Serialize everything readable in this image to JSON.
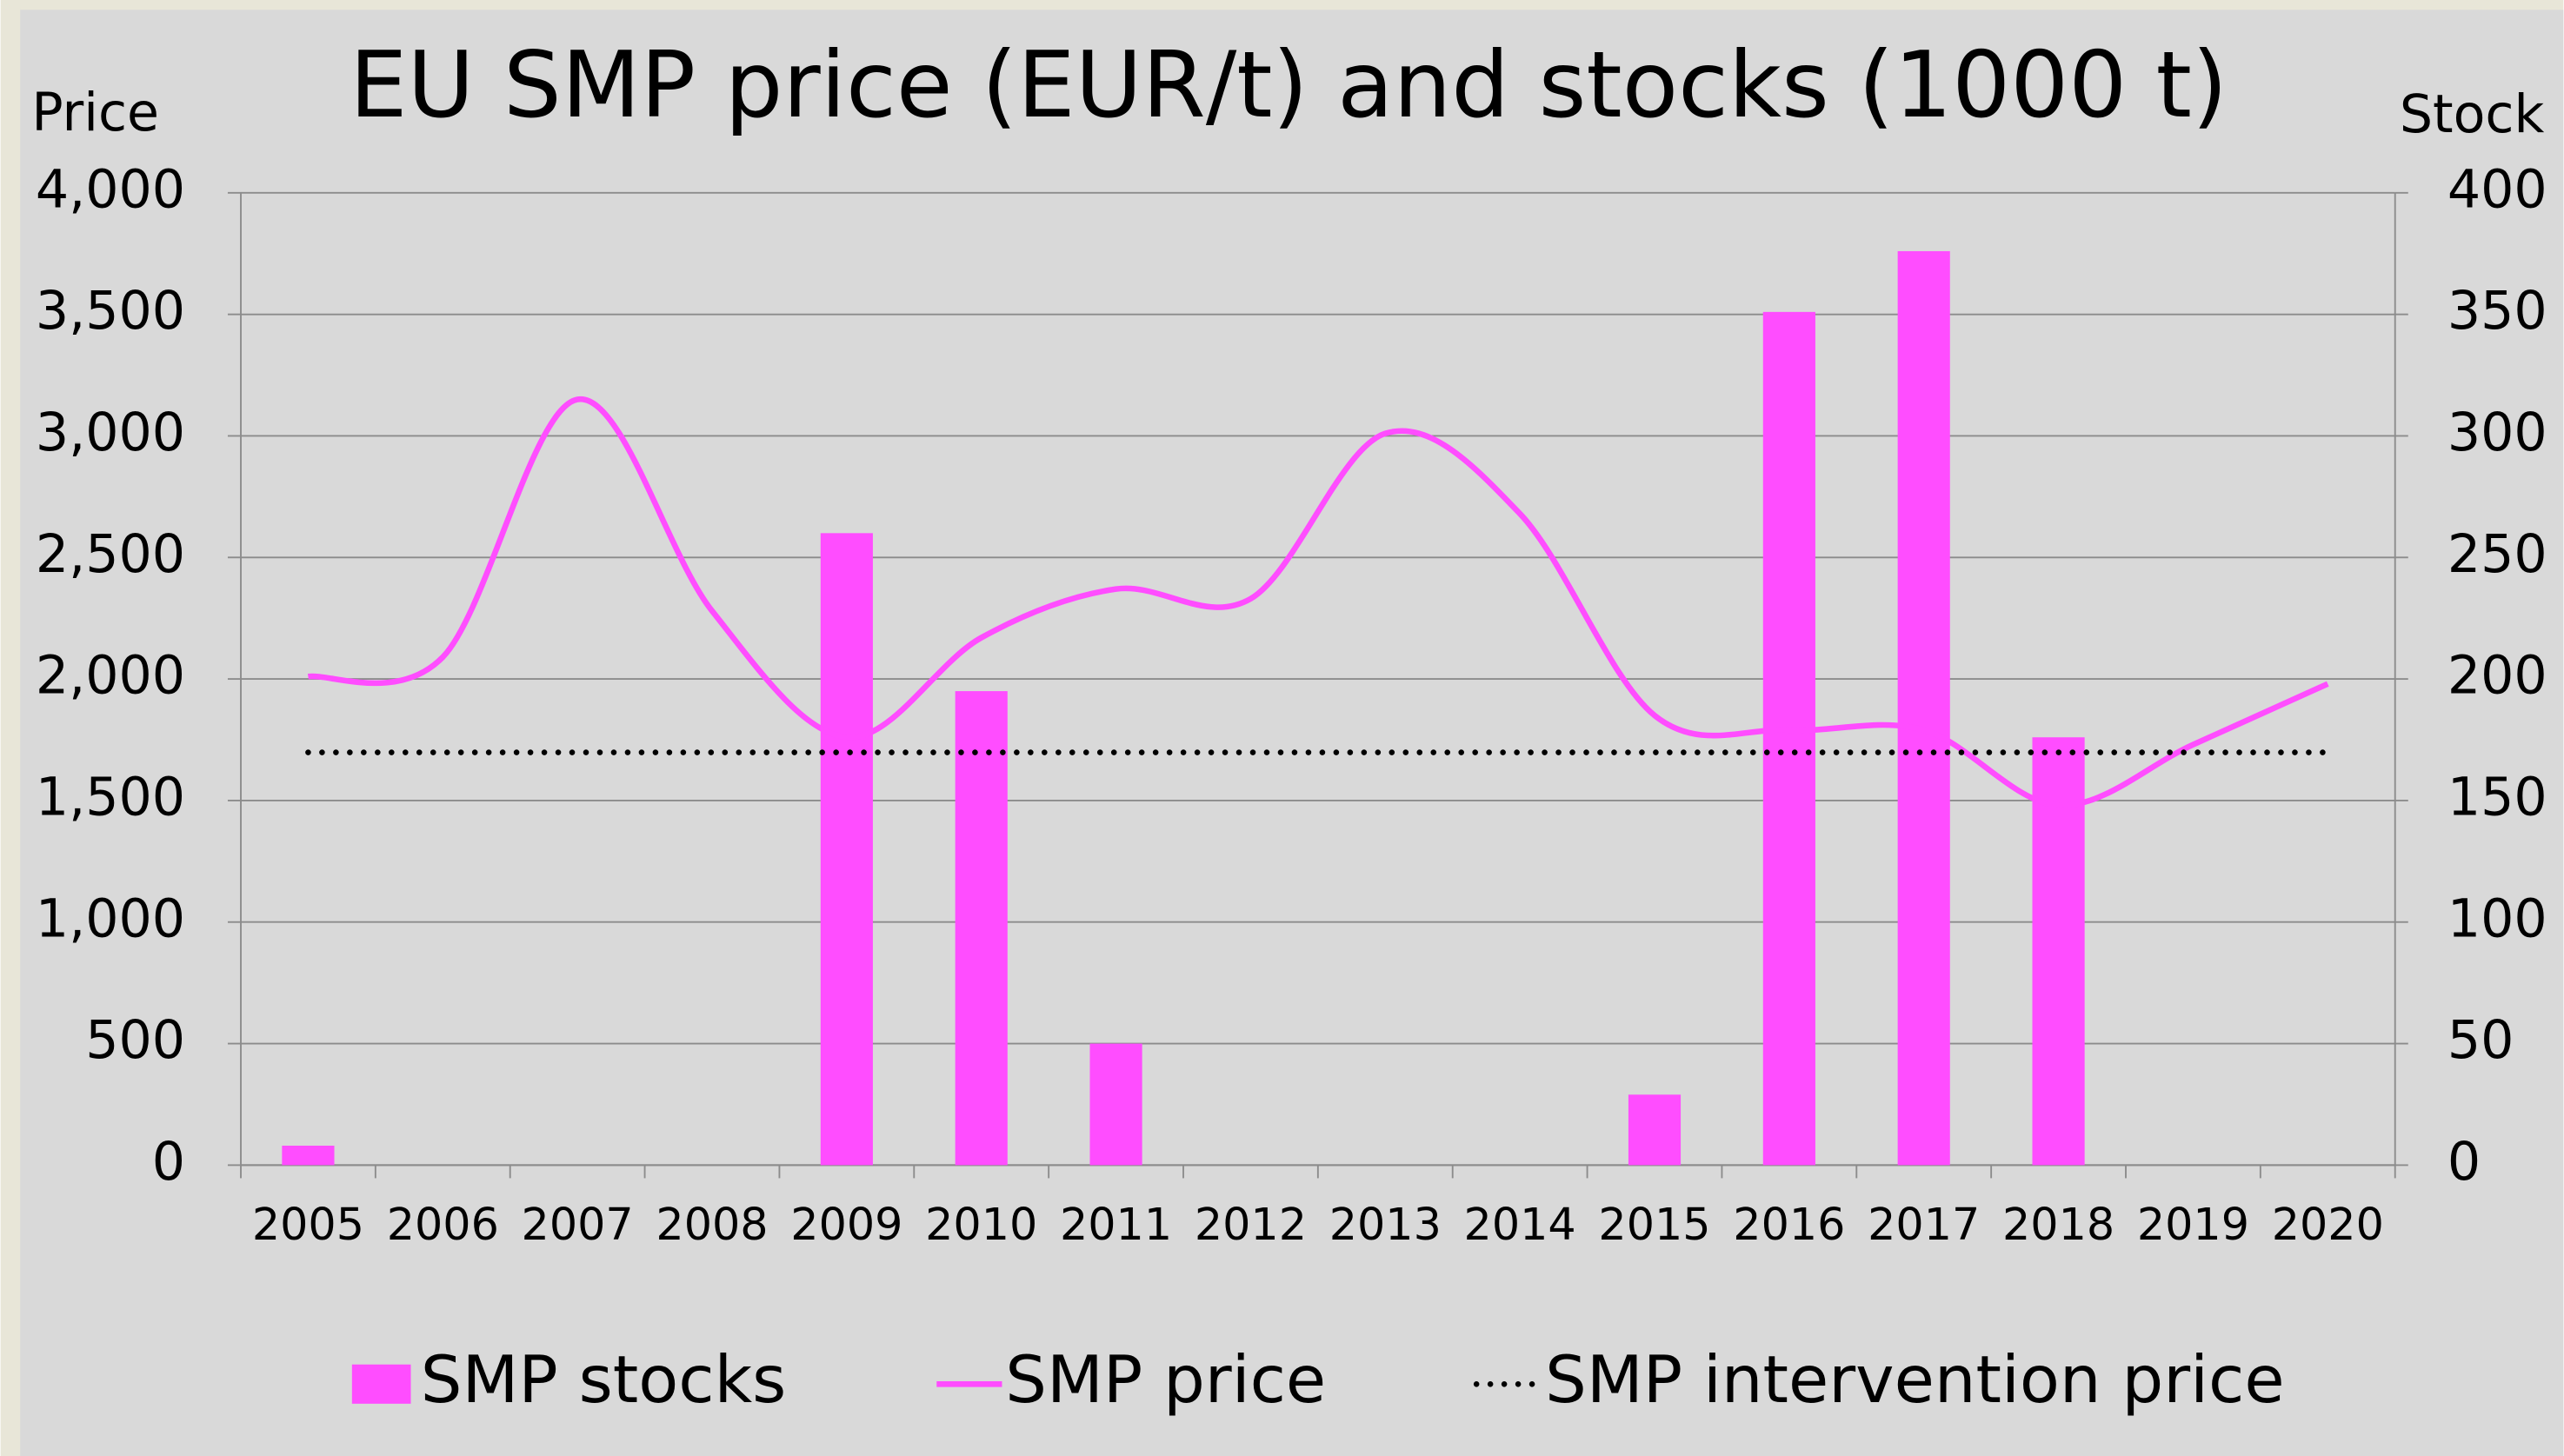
{
  "chart_data": {
    "type": "combo",
    "title": "EU SMP price (EUR/t) and stocks (1000 t)",
    "y_label": "Price",
    "y2_label": "Stock",
    "categories": [
      "2005",
      "2006",
      "2007",
      "2008",
      "2009",
      "2010",
      "2011",
      "2012",
      "2013",
      "2014",
      "2015",
      "2016",
      "2017",
      "2018",
      "2019",
      "2020"
    ],
    "series": [
      {
        "name": "SMP stocks",
        "type": "bar",
        "axis": "y2",
        "color": "#ff4dff",
        "values": [
          8,
          null,
          null,
          null,
          260,
          195,
          50,
          null,
          null,
          null,
          29,
          351,
          376,
          176,
          null,
          null
        ]
      },
      {
        "name": "SMP price",
        "type": "line",
        "smooth": true,
        "color": "#ff4dff",
        "values": [
          2010,
          2090,
          3150,
          2280,
          1760,
          2170,
          2370,
          2330,
          3010,
          2680,
          1850,
          1790,
          1790,
          1480,
          1730,
          1980
        ]
      },
      {
        "name": "SMP intervention price",
        "type": "line",
        "dash": "dotted",
        "color": "#000000",
        "values": [
          1698,
          1698,
          1698,
          1698,
          1698,
          1698,
          1698,
          1698,
          1698,
          1698,
          1698,
          1698,
          1698,
          1698,
          1698,
          1698
        ]
      }
    ],
    "ylim": [
      0,
      4000
    ],
    "yticks": [
      {
        "value": 0,
        "label": "0"
      },
      {
        "value": 500,
        "label": "500"
      },
      {
        "value": 1000,
        "label": "1,000"
      },
      {
        "value": 1500,
        "label": "1,500"
      },
      {
        "value": 2000,
        "label": "2,000"
      },
      {
        "value": 2500,
        "label": "2,500"
      },
      {
        "value": 3000,
        "label": "3,000"
      },
      {
        "value": 3500,
        "label": "3,500"
      },
      {
        "value": 4000,
        "label": "4,000"
      }
    ],
    "y2lim": [
      0,
      400
    ],
    "y2ticks": [
      0,
      50,
      100,
      150,
      200,
      250,
      300,
      350,
      400
    ],
    "grid": true,
    "legend": "bottom"
  }
}
